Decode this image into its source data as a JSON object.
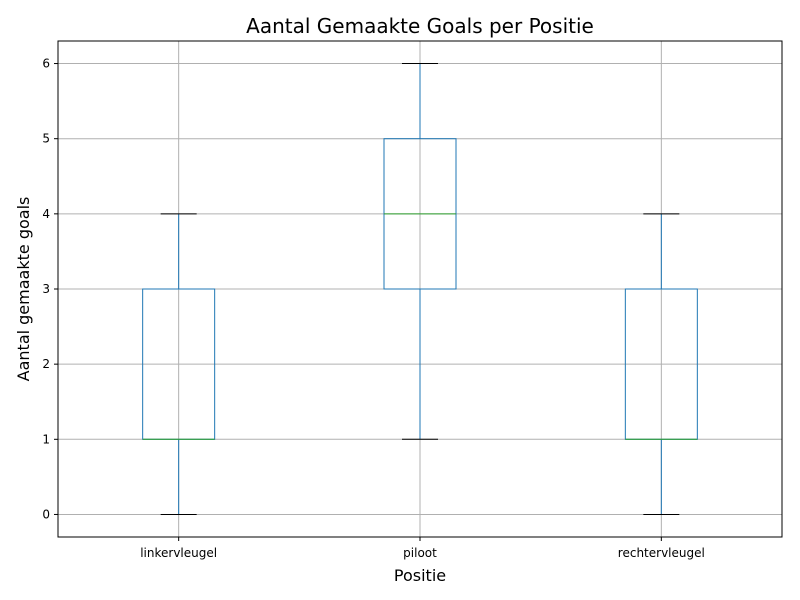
{
  "chart_data": {
    "type": "box",
    "title": "Aantal Gemaakte Goals per Positie",
    "xlabel": "Positie",
    "ylabel": "Aantal gemaakte goals",
    "categories": [
      "linkervleugel",
      "piloot",
      "rechtervleugel"
    ],
    "boxes": [
      {
        "category": "linkervleugel",
        "whisker_low": 0,
        "q1": 1,
        "median": 1,
        "q3": 3,
        "whisker_high": 4
      },
      {
        "category": "piloot",
        "whisker_low": 1,
        "q1": 3,
        "median": 4,
        "q3": 5,
        "whisker_high": 6
      },
      {
        "category": "rechtervleugel",
        "whisker_low": 0,
        "q1": 1,
        "median": 1,
        "q3": 3,
        "whisker_high": 4
      }
    ],
    "ylim": [
      -0.3,
      6.3
    ],
    "yticks": [
      0,
      1,
      2,
      3,
      4,
      5,
      6
    ],
    "grid": true,
    "colors": {
      "box": "#1f77b4",
      "median": "#2ca02c",
      "caps": "#000000",
      "grid": "#b0b0b0"
    }
  }
}
